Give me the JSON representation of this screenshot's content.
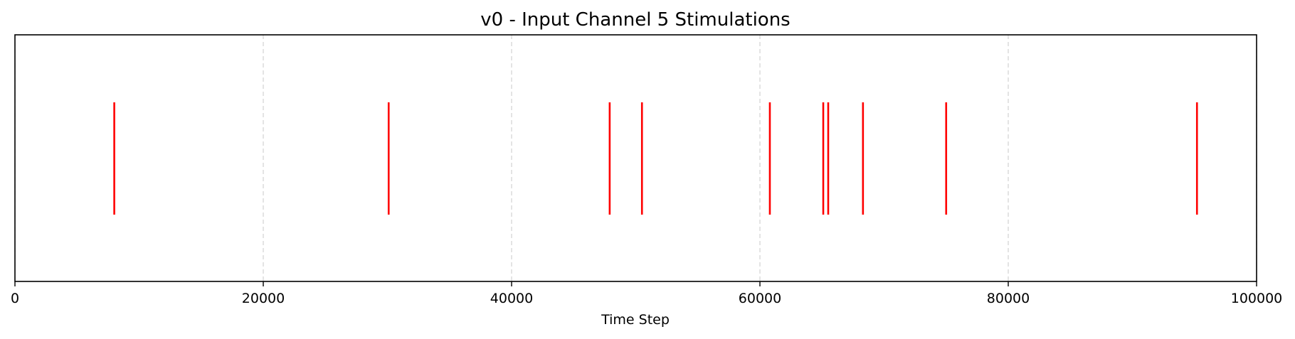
{
  "chart_data": {
    "type": "eventplot",
    "title": "v0 - Input Channel 5 Stimulations",
    "xlabel": "Time Step",
    "ylabel": "",
    "xlim": [
      0,
      100000
    ],
    "xticks": [
      0,
      20000,
      40000,
      60000,
      80000,
      100000
    ],
    "xtick_labels": [
      "0",
      "20000",
      "40000",
      "60000",
      "80000",
      "100000"
    ],
    "grid": {
      "x": true,
      "y": false,
      "style": "dashed"
    },
    "series": [
      {
        "color": "#ff0000",
        "events": [
          8000,
          30100,
          47900,
          50500,
          60800,
          65100,
          65500,
          68300,
          75000,
          95200
        ]
      }
    ]
  }
}
